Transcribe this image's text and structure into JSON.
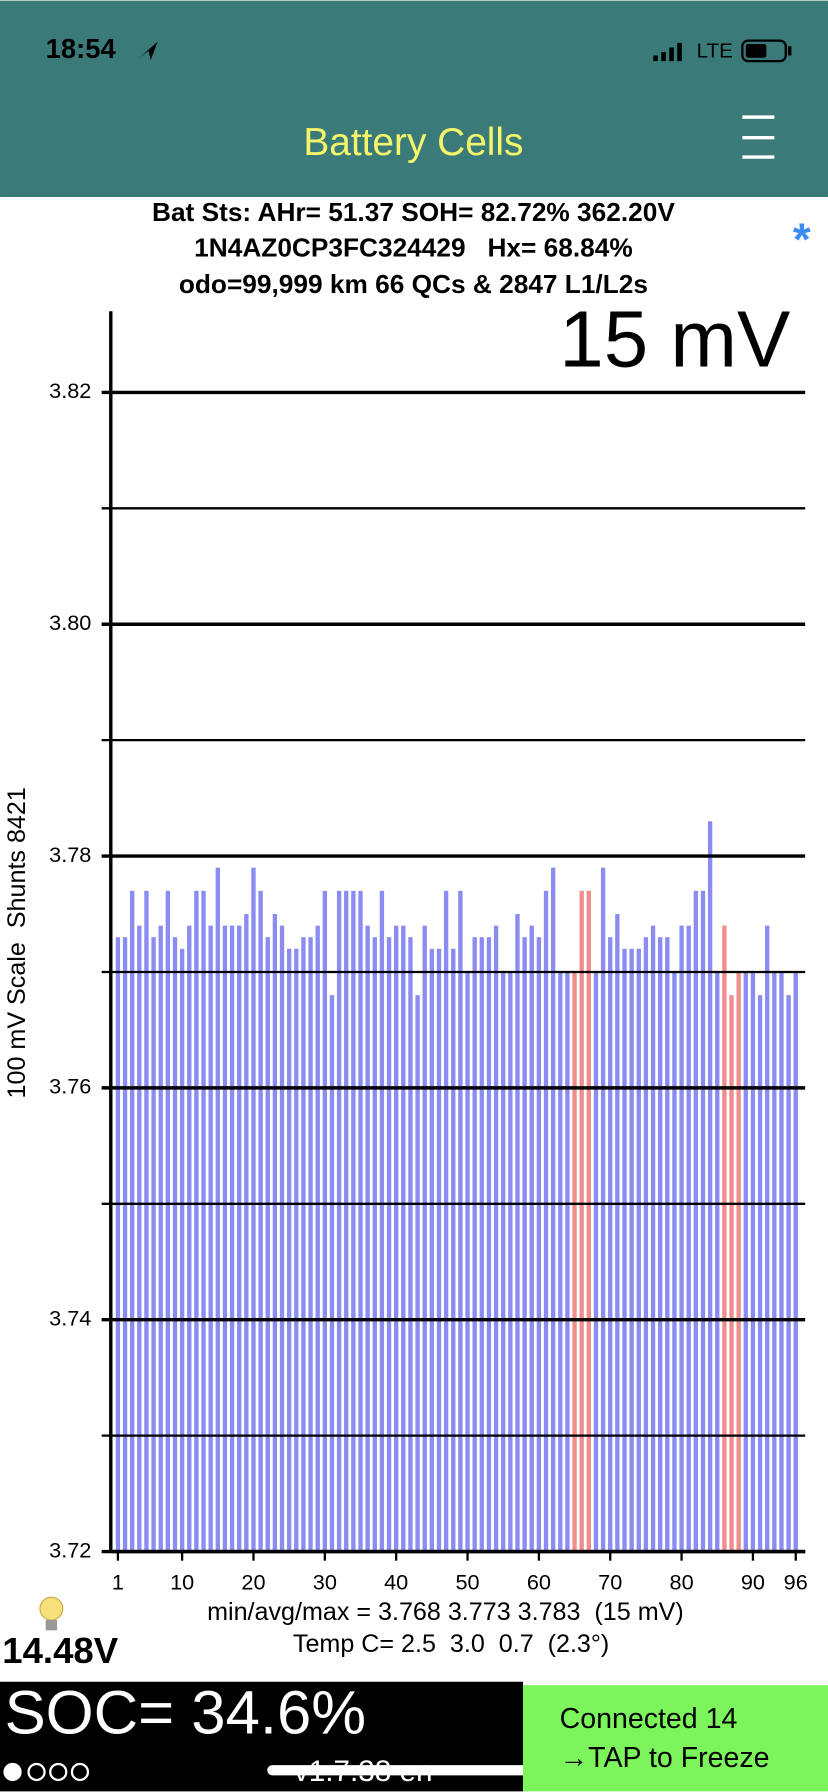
{
  "status_bar": {
    "time": "18:54",
    "network": "LTE"
  },
  "header": {
    "title": "Battery Cells"
  },
  "info": {
    "lines": [
      "Bat Sts: AHr= 51.37 SOH= 82.72% 362.20V",
      "1N4AZ0CP3FC324429   Hx= 68.84%",
      "odo=99,999 km 66 QCs & 2847 L1/L2s"
    ],
    "marker": "*"
  },
  "chart_data": {
    "type": "bar",
    "annotation": "15 mV",
    "ylabel": "100 mV Scale  Shunts 8421",
    "x": [
      1,
      2,
      3,
      4,
      5,
      6,
      7,
      8,
      9,
      10,
      11,
      12,
      13,
      14,
      15,
      16,
      17,
      18,
      19,
      20,
      21,
      22,
      23,
      24,
      25,
      26,
      27,
      28,
      29,
      30,
      31,
      32,
      33,
      34,
      35,
      36,
      37,
      38,
      39,
      40,
      41,
      42,
      43,
      44,
      45,
      46,
      47,
      48,
      49,
      50,
      51,
      52,
      53,
      54,
      55,
      56,
      57,
      58,
      59,
      60,
      61,
      62,
      63,
      64,
      65,
      66,
      67,
      68,
      69,
      70,
      71,
      72,
      73,
      74,
      75,
      76,
      77,
      78,
      79,
      80,
      81,
      82,
      83,
      84,
      85,
      86,
      87,
      88,
      89,
      90,
      91,
      92,
      93,
      94,
      95,
      96
    ],
    "values": [
      3.773,
      3.773,
      3.777,
      3.774,
      3.777,
      3.773,
      3.774,
      3.777,
      3.773,
      3.772,
      3.774,
      3.777,
      3.777,
      3.774,
      3.779,
      3.774,
      3.774,
      3.774,
      3.775,
      3.779,
      3.777,
      3.773,
      3.775,
      3.774,
      3.772,
      3.772,
      3.773,
      3.773,
      3.774,
      3.777,
      3.768,
      3.777,
      3.777,
      3.777,
      3.777,
      3.774,
      3.773,
      3.777,
      3.773,
      3.774,
      3.774,
      3.773,
      3.768,
      3.774,
      3.772,
      3.772,
      3.777,
      3.772,
      3.777,
      3.77,
      3.773,
      3.773,
      3.773,
      3.774,
      3.77,
      3.77,
      3.775,
      3.773,
      3.774,
      3.773,
      3.777,
      3.779,
      3.77,
      3.77,
      3.77,
      3.777,
      3.777,
      3.77,
      3.779,
      3.773,
      3.775,
      3.772,
      3.772,
      3.772,
      3.773,
      3.774,
      3.773,
      3.773,
      3.77,
      3.774,
      3.774,
      3.777,
      3.777,
      3.783,
      3.77,
      3.774,
      3.768,
      3.77,
      3.77,
      3.77,
      3.768,
      3.774,
      3.77,
      3.77,
      3.768,
      3.77
    ],
    "color": "#8a8cf2",
    "highlight_color": "#f08c8c",
    "highlight": [
      65,
      66,
      67,
      86,
      87,
      88
    ],
    "xlim": [
      0,
      97
    ],
    "xticks": [
      1,
      10,
      20,
      30,
      40,
      50,
      60,
      70,
      80,
      90,
      96
    ],
    "ylim": [
      3.72,
      3.827
    ],
    "yticks": [
      3.72,
      3.74,
      3.76,
      3.78,
      {
        "value": 3.8,
        "label": "3.80"
      },
      3.82
    ],
    "minor_yticks": [
      3.73,
      3.75,
      3.77,
      3.79,
      3.81
    ],
    "grid": true,
    "stats": [
      "min/avg/max = 3.768 3.773 3.783  (15 mV)",
      "Temp C= 2.5  3.0  0.7  (2.3°)"
    ]
  },
  "footer": {
    "aux_voltage": "14.48V",
    "soc": "SOC= 34.6%",
    "connection": [
      "Connected 14",
      "→TAP to Freeze"
    ],
    "version": "v1.7.38 en"
  }
}
